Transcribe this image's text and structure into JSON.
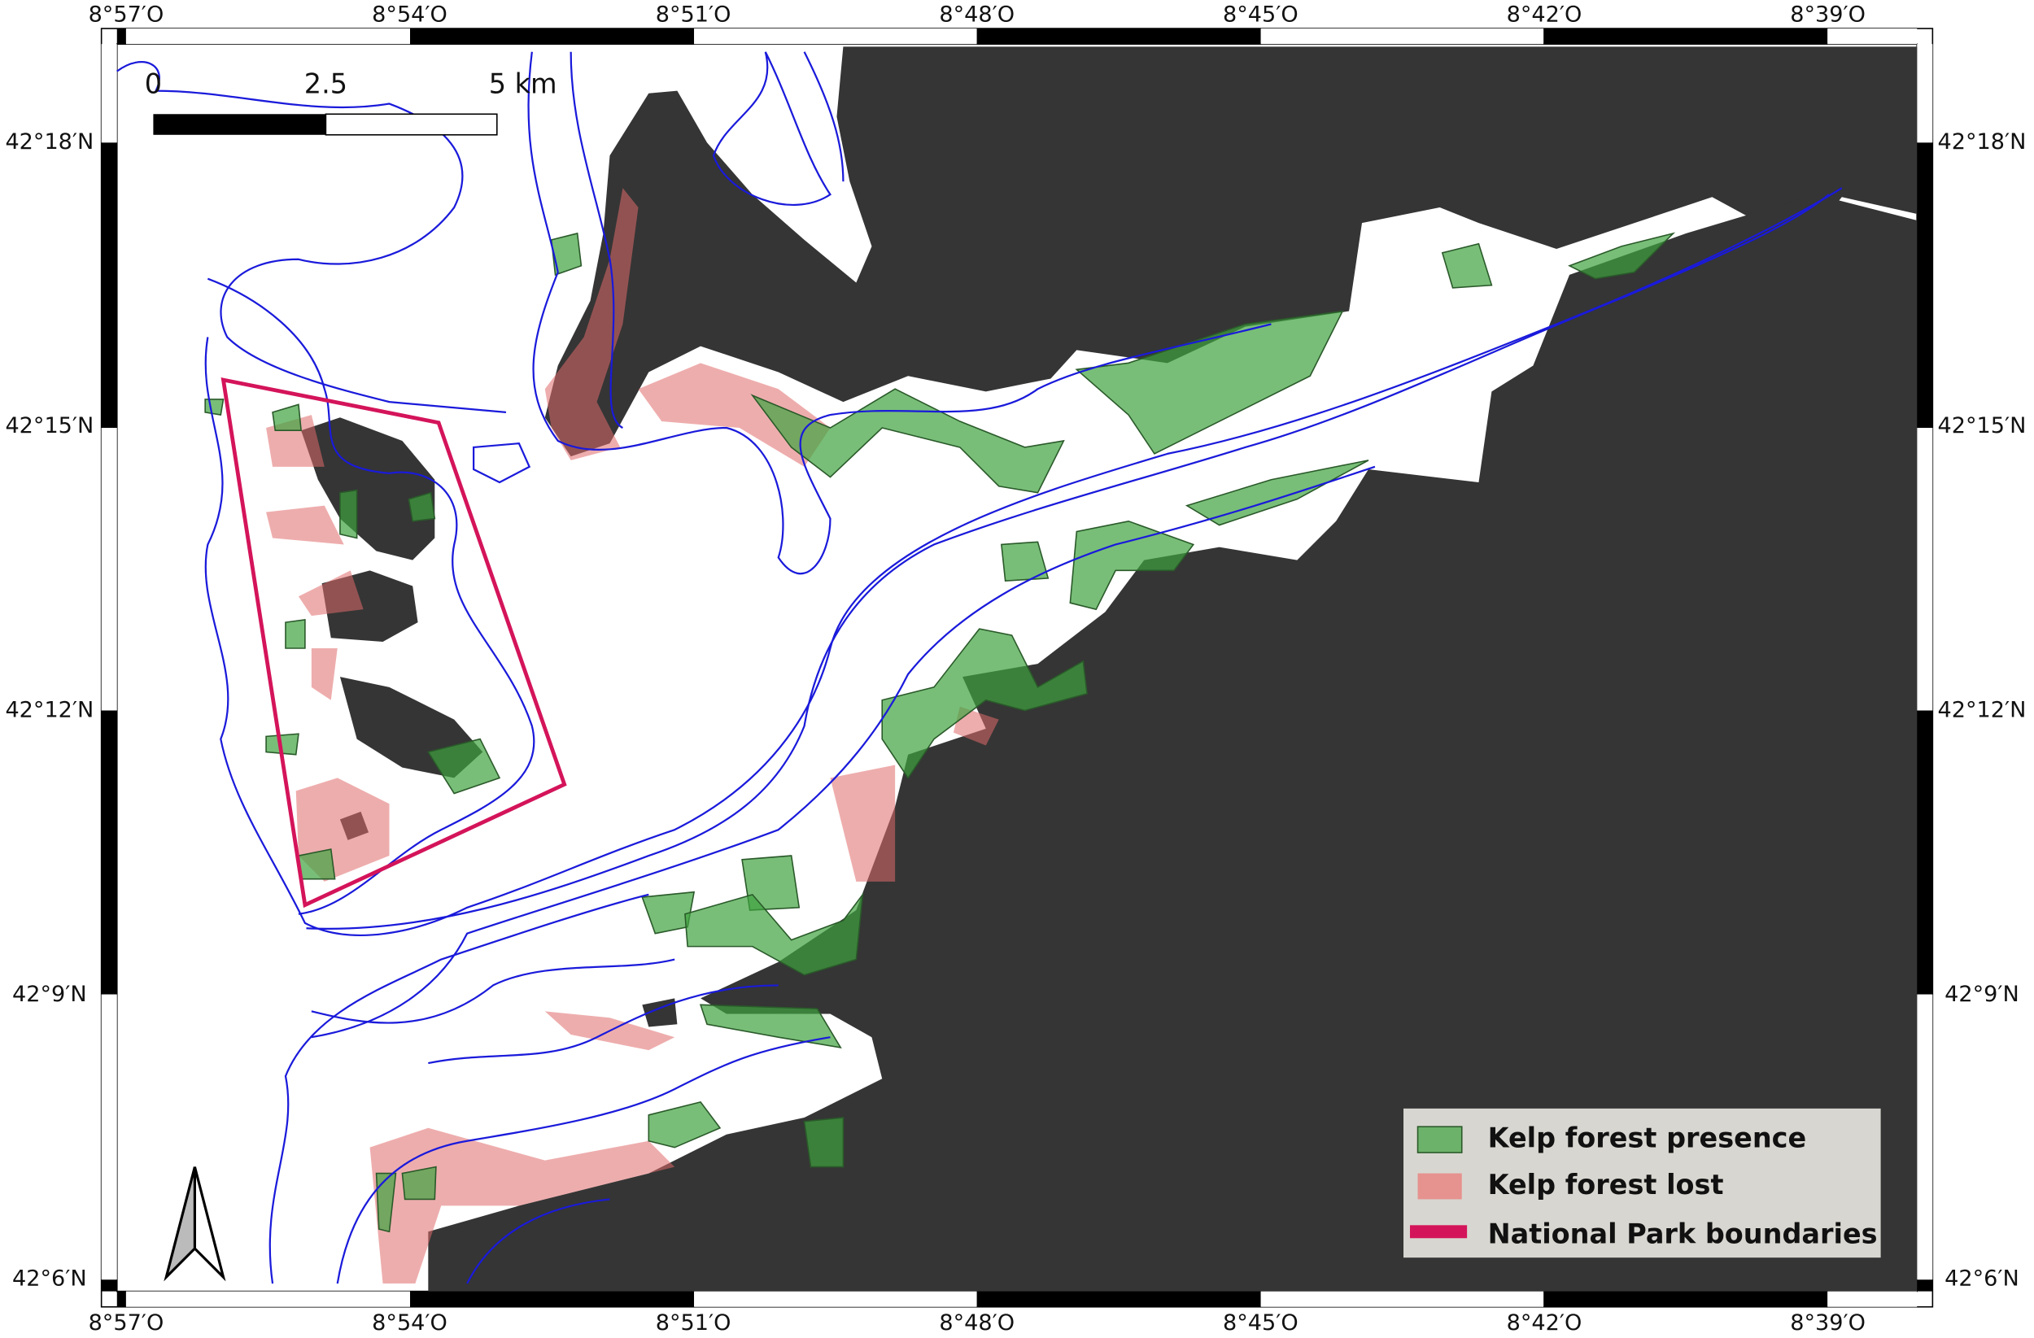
{
  "map": {
    "x_labels": [
      "8°57′O",
      "8°54′O",
      "8°51′O",
      "8°48′O",
      "8°45′O",
      "8°42′O",
      "8°39′O"
    ],
    "y_labels": [
      "42°18′N",
      "42°15′N",
      "42°12′N",
      "42°9′N",
      "42°6′N"
    ],
    "scale_bar": [
      "0",
      "2.5",
      "5 km"
    ],
    "legend": [
      "Kelp forest presence",
      "Kelp forest lost",
      "National Park boundaries"
    ]
  }
}
